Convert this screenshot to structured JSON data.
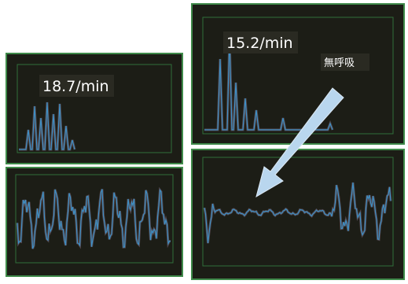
{
  "left_monitor": {
    "rate": "18.7/min"
  },
  "right_monitor": {
    "rate": "15.2/min",
    "annotation": "無呼吸"
  }
}
